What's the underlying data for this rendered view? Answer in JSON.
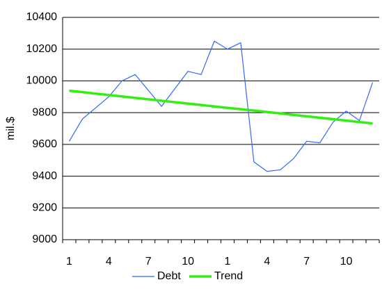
{
  "chart_data": {
    "type": "line",
    "y_label": "mil.$",
    "categories": [
      "1",
      null,
      null,
      "4",
      null,
      null,
      "7",
      null,
      null,
      "10",
      null,
      null,
      "1",
      null,
      null,
      "4",
      null,
      null,
      "7",
      null,
      null,
      "10",
      null,
      null
    ],
    "series": [
      {
        "name": "Debt",
        "color": "#3366ff",
        "width": 1.2,
        "values": [
          9620,
          9760,
          9830,
          9900,
          10000,
          10040,
          9940,
          9840,
          9950,
          10060,
          10040,
          10250,
          10200,
          10240,
          9490,
          9430,
          9440,
          9510,
          9620,
          9610,
          9740,
          9810,
          9750,
          9990
        ]
      },
      {
        "name": "Trend",
        "color": "#33ee11",
        "width": 3.5,
        "values": [
          9938,
          9929,
          9920,
          9911,
          9902,
          9893,
          9884,
          9875,
          9866,
          9857,
          9848,
          9839,
          9830,
          9822,
          9813,
          9804,
          9795,
          9786,
          9777,
          9768,
          9759,
          9750,
          9741,
          9732
        ]
      }
    ],
    "ylim": [
      9000,
      10400
    ],
    "yticks": [
      9000,
      9200,
      9400,
      9600,
      9800,
      10000,
      10200,
      10400
    ],
    "grid": true
  }
}
